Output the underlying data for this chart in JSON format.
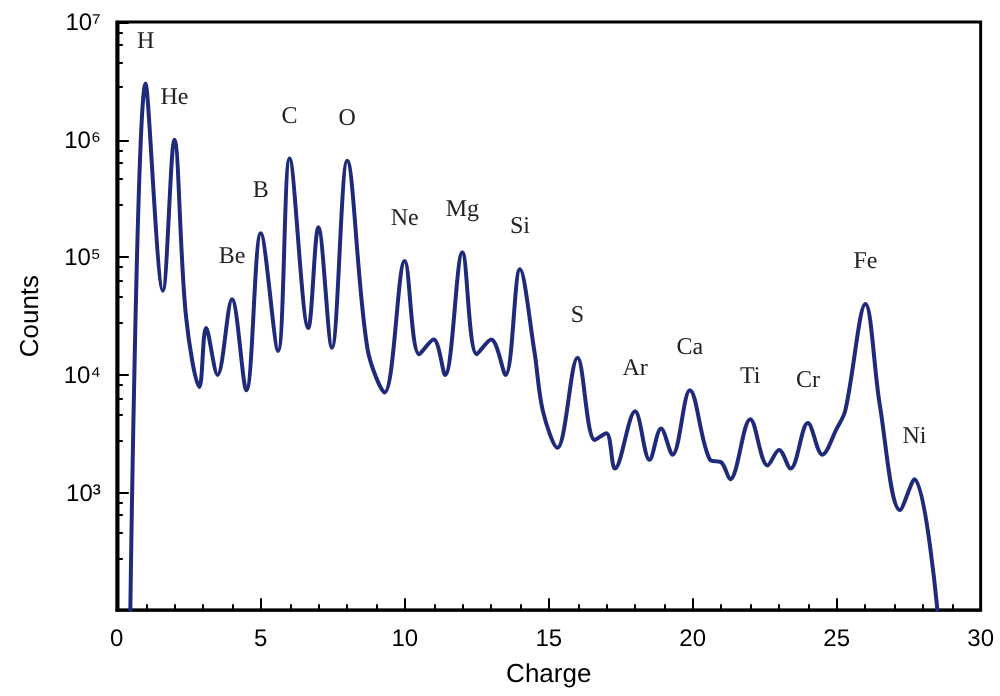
{
  "chart_data": {
    "type": "line",
    "xlabel": "Charge",
    "ylabel": "Counts",
    "x": [
      0.47,
      1.0,
      1.6,
      2.0,
      2.4,
      2.87,
      3.1,
      3.5,
      4.0,
      4.5,
      5.0,
      5.6,
      6.0,
      6.65,
      7.0,
      7.47,
      8.0,
      8.7,
      9.3,
      10.0,
      10.5,
      11.0,
      11.4,
      12.0,
      12.5,
      13.0,
      13.5,
      14.0,
      14.5,
      14.8,
      15.3,
      16.0,
      16.6,
      17.0,
      17.3,
      18.0,
      18.5,
      18.9,
      19.3,
      19.9,
      20.6,
      21.0,
      21.3,
      22.0,
      22.6,
      23.0,
      23.4,
      24.0,
      24.5,
      25.0,
      25.3,
      26.0,
      26.5,
      27.2,
      27.7,
      28.5
    ],
    "series": [
      {
        "color": "#1f2a7a",
        "values": [
          100,
          3000000,
          52000,
          1000000,
          32000,
          7900,
          25000,
          10000,
          44000,
          7400,
          160000,
          16000,
          690000,
          25000,
          180000,
          17000,
          660000,
          17000,
          7100,
          93000,
          15000,
          20000,
          10000,
          110000,
          15000,
          20000,
          10000,
          79000,
          16000,
          4900,
          2400,
          14000,
          2800,
          3200,
          1600,
          4900,
          1900,
          3500,
          2100,
          7400,
          1900,
          1800,
          1300,
          4200,
          1700,
          2300,
          1600,
          3900,
          2100,
          3500,
          5000,
          40000,
          5500,
          710,
          1300,
          100
        ]
      }
    ],
    "xlim": [
      0,
      30
    ],
    "xticks": [
      0,
      5,
      10,
      15,
      20,
      25,
      30
    ],
    "ylim": [
      100,
      10000000
    ],
    "yticks": [
      {
        "value": 1000,
        "label": "10³"
      },
      {
        "value": 10000,
        "label": "10⁴"
      },
      {
        "value": 100000,
        "label": "10⁵"
      },
      {
        "value": 1000000,
        "label": "10⁶"
      },
      {
        "value": 10000000,
        "label": "10⁷"
      }
    ],
    "log": "y",
    "grid": false,
    "marker": "none",
    "line_style": "solid",
    "annotations": [
      {
        "text": "H",
        "x": 1.0,
        "y": 3000000
      },
      {
        "text": "He",
        "x": 2.0,
        "y": 1000000
      },
      {
        "text": "Be",
        "x": 4.0,
        "y": 44000
      },
      {
        "text": "B",
        "x": 5.0,
        "y": 160000
      },
      {
        "text": "C",
        "x": 6.0,
        "y": 690000
      },
      {
        "text": "O",
        "x": 8.0,
        "y": 660000
      },
      {
        "text": "Ne",
        "x": 10.0,
        "y": 93000
      },
      {
        "text": "Mg",
        "x": 12.0,
        "y": 110000
      },
      {
        "text": "Si",
        "x": 14.0,
        "y": 79000
      },
      {
        "text": "S",
        "x": 16.0,
        "y": 14000
      },
      {
        "text": "Ar",
        "x": 18.0,
        "y": 4900
      },
      {
        "text": "Ca",
        "x": 19.9,
        "y": 7400
      },
      {
        "text": "Ti",
        "x": 22.0,
        "y": 4200
      },
      {
        "text": "Cr",
        "x": 24.0,
        "y": 3900
      },
      {
        "text": "Fe",
        "x": 26.0,
        "y": 40000
      },
      {
        "text": "Ni",
        "x": 27.7,
        "y": 1300
      }
    ]
  }
}
